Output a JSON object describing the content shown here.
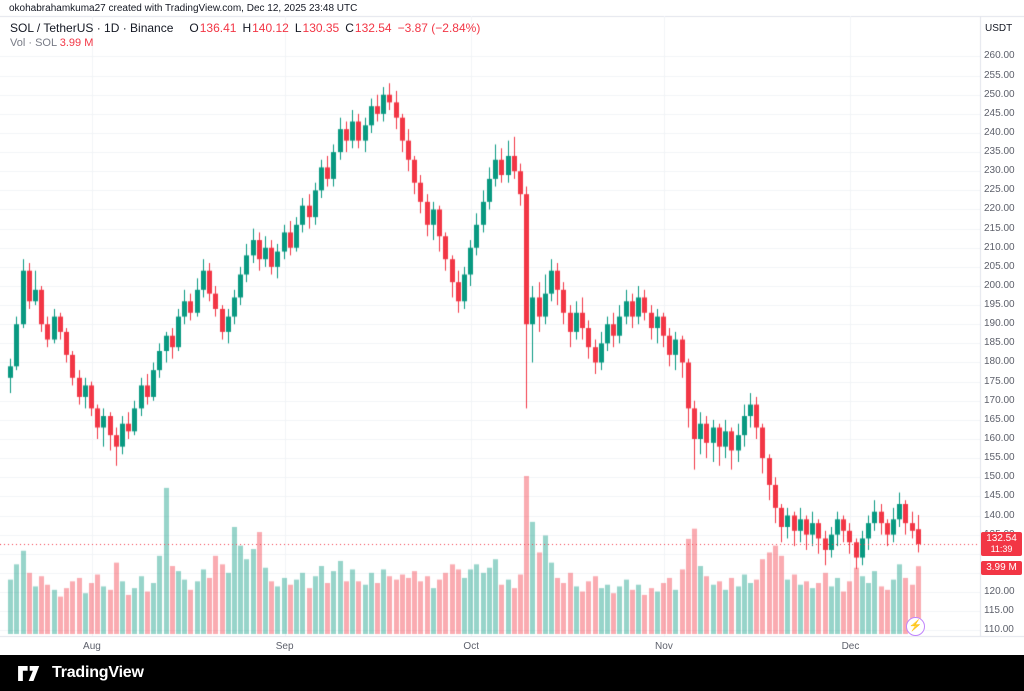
{
  "attribution": "okohabrahamkuma27 created with TradingView.com, Dec 12, 2025 23:48 UTC",
  "legend": {
    "title": "SOL / TetherUS · 1D · Binance",
    "o_label": "O",
    "o": "136.41",
    "h_label": "H",
    "h": "140.12",
    "l_label": "L",
    "l": "130.35",
    "c_label": "C",
    "c": "132.54",
    "change": "−3.87 (−2.84%)",
    "vol_label": "Vol · SOL",
    "vol_value": "3.99 M"
  },
  "axis": {
    "currency": "USDT",
    "price_badge": {
      "price": "132.54",
      "countdown": "11:39"
    },
    "volume_badge": "3.99 M"
  },
  "footer": {
    "brand": "TradingView"
  },
  "boost": {
    "icon": "⚡"
  },
  "colors": {
    "up": "#089981",
    "down": "#f23645",
    "vol_up": "rgba(8,153,129,0.42)",
    "vol_down": "rgba(242,54,69,0.42)",
    "last_price_line": "#f23645",
    "badge_bg": "#f23645",
    "grid": "#f2f4f7",
    "frame": "#e0e3eb",
    "axis_text": "#5d606b"
  },
  "chart_data": {
    "type": "candlestick",
    "title": "SOL / TetherUS · 1D · Binance",
    "ylabel": "Price (USDT)",
    "volume_unit": "M SOL",
    "last_price": 132.54,
    "y_axis": {
      "min": 108.5,
      "max": 263,
      "tick_min": 110,
      "tick_max": 260,
      "tick_step": 5
    },
    "x_ticks": [
      {
        "index": 13,
        "label": "Aug"
      },
      {
        "index": 44,
        "label": "Sep"
      },
      {
        "index": 74,
        "label": "Oct"
      },
      {
        "index": 105,
        "label": "Nov"
      },
      {
        "index": 135,
        "label": "Dec"
      }
    ],
    "candles_format": [
      "open",
      "high",
      "low",
      "close",
      "volume_millions"
    ],
    "candles": [
      [
        176,
        181,
        172,
        179,
        3.2
      ],
      [
        179,
        192,
        178,
        190,
        4.1
      ],
      [
        190,
        207,
        189,
        204,
        4.9
      ],
      [
        204,
        206,
        194,
        196,
        3.6
      ],
      [
        196,
        204,
        195,
        199,
        2.8
      ],
      [
        199,
        200,
        188,
        190,
        3.4
      ],
      [
        190,
        192,
        184,
        186,
        2.9
      ],
      [
        186,
        194,
        185,
        192,
        2.6
      ],
      [
        192,
        193,
        186,
        188,
        2.2
      ],
      [
        188,
        189,
        180,
        182,
        2.7
      ],
      [
        182,
        183,
        174,
        176,
        3.1
      ],
      [
        176,
        178,
        169,
        171,
        3.3
      ],
      [
        171,
        176,
        168,
        174,
        2.4
      ],
      [
        174,
        175,
        166,
        168,
        3.0
      ],
      [
        168,
        169,
        160,
        163,
        3.5
      ],
      [
        163,
        168,
        158,
        166,
        2.8
      ],
      [
        166,
        167,
        157,
        161,
        2.6
      ],
      [
        161,
        163,
        153,
        158,
        4.2
      ],
      [
        158,
        166,
        156,
        164,
        3.1
      ],
      [
        164,
        167,
        160,
        162,
        2.3
      ],
      [
        162,
        170,
        161,
        168,
        2.7
      ],
      [
        168,
        176,
        166,
        174,
        3.4
      ],
      [
        174,
        177,
        169,
        171,
        2.5
      ],
      [
        171,
        180,
        170,
        178,
        3.0
      ],
      [
        178,
        185,
        176,
        183,
        4.6
      ],
      [
        183,
        188,
        180,
        187,
        8.6
      ],
      [
        187,
        189,
        181,
        184,
        4.0
      ],
      [
        184,
        194,
        183,
        192,
        3.7
      ],
      [
        192,
        199,
        190,
        196,
        3.2
      ],
      [
        196,
        198,
        191,
        193,
        2.6
      ],
      [
        193,
        202,
        192,
        199,
        3.1
      ],
      [
        199,
        207,
        197,
        204,
        3.8
      ],
      [
        204,
        206,
        196,
        198,
        3.3
      ],
      [
        198,
        200,
        192,
        194,
        4.6
      ],
      [
        194,
        195,
        186,
        188,
        4.1
      ],
      [
        188,
        194,
        185,
        192,
        3.6
      ],
      [
        192,
        199,
        190,
        197,
        6.3
      ],
      [
        197,
        205,
        195,
        203,
        5.2
      ],
      [
        203,
        211,
        201,
        208,
        4.4
      ],
      [
        208,
        215,
        206,
        212,
        5.0
      ],
      [
        212,
        214,
        204,
        207,
        6.0
      ],
      [
        207,
        213,
        205,
        210,
        3.9
      ],
      [
        210,
        212,
        203,
        205,
        3.1
      ],
      [
        205,
        211,
        202,
        209,
        2.8
      ],
      [
        209,
        216,
        207,
        214,
        3.3
      ],
      [
        214,
        217,
        208,
        210,
        2.9
      ],
      [
        210,
        218,
        209,
        216,
        3.2
      ],
      [
        216,
        223,
        214,
        221,
        3.6
      ],
      [
        221,
        224,
        215,
        218,
        2.7
      ],
      [
        218,
        227,
        216,
        225,
        3.4
      ],
      [
        225,
        233,
        223,
        231,
        4.0
      ],
      [
        231,
        234,
        226,
        228,
        3.0
      ],
      [
        228,
        237,
        226,
        235,
        3.7
      ],
      [
        235,
        244,
        233,
        241,
        4.3
      ],
      [
        241,
        243,
        235,
        238,
        3.1
      ],
      [
        238,
        246,
        236,
        243,
        3.8
      ],
      [
        243,
        245,
        236,
        238,
        3.1
      ],
      [
        238,
        244,
        235,
        242,
        2.9
      ],
      [
        242,
        249,
        240,
        247,
        3.6
      ],
      [
        247,
        250,
        243,
        245,
        3.0
      ],
      [
        245,
        252,
        243,
        250,
        3.8
      ],
      [
        250,
        253,
        246,
        248,
        3.4
      ],
      [
        248,
        251,
        241,
        244,
        3.2
      ],
      [
        244,
        245,
        235,
        238,
        3.5
      ],
      [
        238,
        241,
        230,
        233,
        3.3
      ],
      [
        233,
        234,
        224,
        227,
        3.7
      ],
      [
        227,
        229,
        219,
        222,
        3.1
      ],
      [
        222,
        224,
        213,
        216,
        3.4
      ],
      [
        216,
        222,
        212,
        220,
        2.7
      ],
      [
        220,
        221,
        209,
        213,
        3.2
      ],
      [
        213,
        214,
        204,
        207,
        3.6
      ],
      [
        207,
        208,
        197,
        201,
        4.1
      ],
      [
        201,
        204,
        193,
        196,
        3.8
      ],
      [
        196,
        205,
        194,
        203,
        3.3
      ],
      [
        203,
        212,
        200,
        210,
        3.8
      ],
      [
        210,
        219,
        208,
        216,
        4.1
      ],
      [
        216,
        225,
        214,
        222,
        3.6
      ],
      [
        222,
        231,
        220,
        228,
        3.9
      ],
      [
        228,
        237,
        226,
        233,
        4.4
      ],
      [
        233,
        236,
        227,
        229,
        2.9
      ],
      [
        229,
        238,
        227,
        234,
        3.2
      ],
      [
        234,
        239,
        228,
        230,
        2.7
      ],
      [
        230,
        232,
        221,
        224,
        3.5
      ],
      [
        224,
        226,
        168,
        190,
        9.3
      ],
      [
        190,
        200,
        180,
        197,
        6.6
      ],
      [
        197,
        201,
        188,
        192,
        4.8
      ],
      [
        192,
        203,
        190,
        198,
        5.8
      ],
      [
        198,
        207,
        196,
        204,
        4.2
      ],
      [
        204,
        206,
        195,
        199,
        3.3
      ],
      [
        199,
        201,
        190,
        193,
        3.0
      ],
      [
        193,
        195,
        184,
        188,
        3.6
      ],
      [
        188,
        196,
        186,
        193,
        2.8
      ],
      [
        193,
        197,
        186,
        189,
        2.5
      ],
      [
        189,
        191,
        181,
        184,
        3.1
      ],
      [
        184,
        186,
        177,
        180,
        3.4
      ],
      [
        180,
        188,
        178,
        185,
        2.7
      ],
      [
        185,
        192,
        183,
        190,
        2.9
      ],
      [
        190,
        193,
        184,
        187,
        2.4
      ],
      [
        187,
        195,
        185,
        192,
        2.8
      ],
      [
        192,
        199,
        190,
        196,
        3.2
      ],
      [
        196,
        198,
        189,
        192,
        2.6
      ],
      [
        192,
        200,
        190,
        197,
        2.9
      ],
      [
        197,
        199,
        191,
        193,
        2.3
      ],
      [
        193,
        195,
        186,
        189,
        2.7
      ],
      [
        189,
        194,
        185,
        192,
        2.5
      ],
      [
        192,
        193,
        184,
        187,
        3.0
      ],
      [
        187,
        189,
        179,
        182,
        3.3
      ],
      [
        182,
        188,
        178,
        186,
        2.6
      ],
      [
        186,
        187,
        176,
        180,
        3.8
      ],
      [
        180,
        181,
        163,
        168,
        5.6
      ],
      [
        168,
        170,
        152,
        160,
        6.2
      ],
      [
        160,
        167,
        156,
        164,
        4.0
      ],
      [
        164,
        166,
        155,
        159,
        3.4
      ],
      [
        159,
        165,
        154,
        163,
        2.9
      ],
      [
        163,
        164,
        153,
        158,
        3.1
      ],
      [
        158,
        165,
        155,
        162,
        2.6
      ],
      [
        162,
        163,
        152,
        157,
        3.3
      ],
      [
        157,
        164,
        154,
        161,
        2.8
      ],
      [
        161,
        169,
        158,
        166,
        3.5
      ],
      [
        166,
        172,
        163,
        169,
        3.0
      ],
      [
        169,
        171,
        160,
        163,
        3.2
      ],
      [
        163,
        164,
        151,
        155,
        4.4
      ],
      [
        155,
        156,
        144,
        148,
        4.8
      ],
      [
        148,
        150,
        138,
        142,
        5.2
      ],
      [
        142,
        143,
        133,
        137,
        4.6
      ],
      [
        137,
        142,
        134,
        140,
        3.2
      ],
      [
        140,
        141,
        132,
        136,
        3.5
      ],
      [
        136,
        142,
        133,
        139,
        2.9
      ],
      [
        139,
        140,
        131,
        135,
        3.1
      ],
      [
        135,
        141,
        132,
        138,
        2.7
      ],
      [
        138,
        139,
        130,
        134,
        3.0
      ],
      [
        134,
        136,
        127,
        131,
        3.6
      ],
      [
        131,
        137,
        129,
        135,
        2.8
      ],
      [
        135,
        141,
        132,
        139,
        3.3
      ],
      [
        139,
        140,
        133,
        136,
        2.5
      ],
      [
        136,
        138,
        130,
        133,
        3.1
      ],
      [
        133,
        134,
        126,
        129,
        3.9
      ],
      [
        129,
        136,
        127,
        134,
        3.4
      ],
      [
        134,
        140,
        131,
        138,
        3.0
      ],
      [
        138,
        144,
        136,
        141,
        3.7
      ],
      [
        141,
        143,
        135,
        138,
        2.8
      ],
      [
        138,
        139,
        132,
        135,
        2.6
      ],
      [
        135,
        142,
        133,
        139,
        3.2
      ],
      [
        139,
        146,
        137,
        143,
        4.1
      ],
      [
        143,
        144,
        135,
        138,
        3.3
      ],
      [
        138,
        141,
        134,
        136,
        2.9
      ],
      [
        136.41,
        140.12,
        130.35,
        132.54,
        3.99
      ]
    ]
  }
}
